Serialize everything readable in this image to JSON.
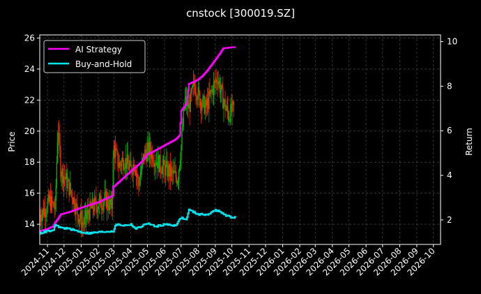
{
  "chart_data": {
    "type": "line",
    "title": "cnstock [300019.SZ]",
    "ylabel": "Price",
    "y2label": "Return",
    "ylim": [
      12.7,
      26.2
    ],
    "y2lim": [
      0.9,
      10.3
    ],
    "yticks": [
      14,
      16,
      18,
      20,
      22,
      24,
      26
    ],
    "y2ticks": [
      2,
      4,
      6,
      8,
      10
    ],
    "xlim": [
      "2024-10-18",
      "2026-10-14"
    ],
    "xticks": [
      "2024-11",
      "2024-12",
      "2025-01",
      "2025-02",
      "2025-03",
      "2025-04",
      "2025-05",
      "2025-06",
      "2025-07",
      "2025-08",
      "2025-09",
      "2025-10",
      "2025-11",
      "2025-12",
      "2026-01",
      "2026-02",
      "2026-03",
      "2026-04",
      "2026-05",
      "2026-06",
      "2026-07",
      "2026-08",
      "2026-09",
      "2026-10"
    ],
    "grid": true,
    "legend_position": "top-left",
    "colors": {
      "background": "#000000",
      "up": "#00b400",
      "down": "#ff2200",
      "strategy": "#ff00ff",
      "buyhold": "#00e5ee",
      "grid": "#555555"
    },
    "series": [
      {
        "name": "AI Strategy",
        "axis": "right",
        "x": [
          "2024-10-18",
          "2024-11-01",
          "2024-11-10",
          "2024-11-15",
          "2024-11-25",
          "2024-12-10",
          "2025-01-01",
          "2025-02-01",
          "2025-02-28",
          "2025-03-01",
          "2025-03-10",
          "2025-04-01",
          "2025-04-20",
          "2025-05-01",
          "2025-05-10",
          "2025-06-01",
          "2025-06-20",
          "2025-06-28",
          "2025-07-01",
          "2025-07-10",
          "2025-07-15",
          "2025-08-01",
          "2025-08-10",
          "2025-08-20",
          "2025-09-01",
          "2025-09-10",
          "2025-09-15",
          "2025-10-01",
          "2025-10-08"
        ],
        "values": [
          1.5,
          1.6,
          1.7,
          1.9,
          2.25,
          2.35,
          2.55,
          2.8,
          3.1,
          3.5,
          3.7,
          4.2,
          4.6,
          4.95,
          5.05,
          5.35,
          5.6,
          5.8,
          6.9,
          7.2,
          8.1,
          8.3,
          8.5,
          8.8,
          9.2,
          9.5,
          9.7,
          9.75,
          9.75
        ]
      },
      {
        "name": "Buy-and-Hold",
        "axis": "right",
        "x": [
          "2024-10-18",
          "2024-11-01",
          "2024-11-10",
          "2024-11-15",
          "2024-11-25",
          "2024-12-10",
          "2025-01-01",
          "2025-01-15",
          "2025-02-01",
          "2025-02-28",
          "2025-03-05",
          "2025-03-20",
          "2025-04-01",
          "2025-04-10",
          "2025-05-01",
          "2025-05-15",
          "2025-06-01",
          "2025-06-20",
          "2025-07-01",
          "2025-07-10",
          "2025-07-15",
          "2025-08-01",
          "2025-08-20",
          "2025-09-01",
          "2025-09-10",
          "2025-09-20",
          "2025-10-01",
          "2025-10-08"
        ],
        "values": [
          1.4,
          1.5,
          1.5,
          1.75,
          1.65,
          1.6,
          1.45,
          1.4,
          1.45,
          1.5,
          1.8,
          1.75,
          1.8,
          1.6,
          1.85,
          1.7,
          1.8,
          1.75,
          2.1,
          2.0,
          2.45,
          2.25,
          2.25,
          2.45,
          2.35,
          2.2,
          2.1,
          2.15
        ]
      },
      {
        "name": "Price",
        "axis": "left",
        "kind": "candles",
        "x": [
          "2024-10-18",
          "2024-10-28",
          "2024-11-05",
          "2024-11-15",
          "2024-11-20",
          "2024-11-25",
          "2024-12-05",
          "2024-12-15",
          "2024-12-25",
          "2025-01-05",
          "2025-01-15",
          "2025-01-25",
          "2025-02-05",
          "2025-02-15",
          "2025-02-25",
          "2025-03-01",
          "2025-03-10",
          "2025-03-20",
          "2025-04-01",
          "2025-04-08",
          "2025-04-15",
          "2025-04-25",
          "2025-05-05",
          "2025-05-15",
          "2025-05-25",
          "2025-06-05",
          "2025-06-15",
          "2025-06-25",
          "2025-07-01",
          "2025-07-08",
          "2025-07-15",
          "2025-07-25",
          "2025-08-05",
          "2025-08-15",
          "2025-08-25",
          "2025-09-05",
          "2025-09-15",
          "2025-09-25",
          "2025-10-05"
        ],
        "values": [
          14.6,
          15.0,
          15.5,
          15.0,
          20.5,
          17.5,
          16.8,
          16.0,
          14.8,
          14.0,
          14.8,
          15.2,
          15.4,
          15.6,
          15.0,
          19.0,
          17.8,
          18.2,
          17.5,
          18.0,
          16.5,
          18.5,
          18.8,
          18.2,
          17.8,
          17.5,
          17.2,
          17.0,
          19.0,
          22.0,
          21.5,
          23.0,
          22.0,
          21.5,
          22.5,
          23.5,
          22.0,
          21.0,
          21.5
        ]
      }
    ]
  }
}
